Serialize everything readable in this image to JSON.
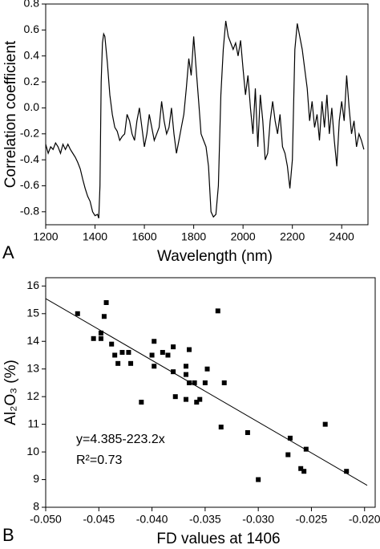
{
  "chart_data": [
    {
      "type": "line",
      "panel_label": "A",
      "xlabel": "Wavelength (nm)",
      "ylabel": "Correlation coefficient",
      "xlim": [
        1200,
        2500
      ],
      "xticks": [
        1200,
        1400,
        1600,
        1800,
        2000,
        2200,
        2400
      ],
      "ylim": [
        -0.9,
        0.8
      ],
      "yticks": [
        -0.8,
        -0.6,
        -0.4,
        -0.2,
        {
          "value": 0,
          "label": "0.0"
        },
        0.2,
        0.4,
        0.6,
        0.8
      ],
      "color": "#000000",
      "x": [
        1200,
        1210,
        1220,
        1230,
        1240,
        1250,
        1260,
        1270,
        1280,
        1290,
        1300,
        1310,
        1320,
        1330,
        1340,
        1350,
        1360,
        1370,
        1380,
        1390,
        1400,
        1410,
        1415,
        1420,
        1425,
        1430,
        1435,
        1440,
        1450,
        1460,
        1470,
        1480,
        1490,
        1500,
        1510,
        1520,
        1530,
        1540,
        1550,
        1560,
        1570,
        1580,
        1590,
        1600,
        1610,
        1620,
        1630,
        1640,
        1650,
        1660,
        1670,
        1680,
        1690,
        1700,
        1710,
        1720,
        1730,
        1740,
        1750,
        1760,
        1770,
        1780,
        1790,
        1800,
        1810,
        1820,
        1830,
        1840,
        1850,
        1860,
        1870,
        1880,
        1890,
        1900,
        1910,
        1920,
        1930,
        1940,
        1950,
        1960,
        1970,
        1980,
        1990,
        2000,
        2010,
        2020,
        2030,
        2040,
        2050,
        2060,
        2070,
        2080,
        2090,
        2100,
        2110,
        2120,
        2130,
        2140,
        2150,
        2160,
        2170,
        2180,
        2190,
        2200,
        2210,
        2220,
        2230,
        2240,
        2250,
        2260,
        2270,
        2280,
        2290,
        2300,
        2310,
        2320,
        2330,
        2340,
        2350,
        2360,
        2370,
        2380,
        2390,
        2400,
        2410,
        2420,
        2430,
        2440,
        2450,
        2460,
        2470,
        2480,
        2490
      ],
      "values": [
        -0.28,
        -0.35,
        -0.3,
        -0.32,
        -0.27,
        -0.3,
        -0.35,
        -0.28,
        -0.32,
        -0.28,
        -0.32,
        -0.35,
        -0.38,
        -0.42,
        -0.47,
        -0.55,
        -0.62,
        -0.68,
        -0.72,
        -0.8,
        -0.83,
        -0.82,
        -0.85,
        -0.6,
        0.2,
        0.5,
        0.57,
        0.55,
        0.35,
        0.1,
        -0.05,
        -0.15,
        -0.18,
        -0.25,
        -0.22,
        -0.2,
        -0.05,
        -0.1,
        -0.2,
        -0.25,
        -0.1,
        0.0,
        -0.15,
        -0.3,
        -0.2,
        -0.05,
        -0.15,
        -0.25,
        -0.2,
        -0.15,
        0.05,
        -0.1,
        -0.2,
        -0.15,
        0.0,
        -0.2,
        -0.35,
        -0.25,
        -0.15,
        -0.05,
        0.15,
        0.38,
        0.25,
        0.55,
        0.3,
        0.05,
        -0.2,
        -0.25,
        -0.3,
        -0.45,
        -0.8,
        -0.84,
        -0.82,
        -0.6,
        0.1,
        0.45,
        0.67,
        0.55,
        0.5,
        0.45,
        0.5,
        0.4,
        0.52,
        0.3,
        0.1,
        0.25,
        0.0,
        -0.2,
        0.15,
        -0.3,
        0.1,
        -0.1,
        -0.4,
        -0.35,
        -0.1,
        0.05,
        -0.1,
        -0.2,
        -0.05,
        -0.3,
        -0.35,
        -0.45,
        -0.62,
        -0.4,
        0.45,
        0.65,
        0.55,
        0.45,
        0.3,
        0.15,
        -0.1,
        0.05,
        -0.15,
        -0.05,
        -0.25,
        0.05,
        -0.15,
        0.1,
        -0.2,
        0.0,
        -0.25,
        -0.45,
        -0.1,
        0.05,
        -0.1,
        0.25,
        0.0,
        -0.2,
        -0.1,
        -0.3,
        -0.2,
        -0.25,
        -0.32
      ]
    },
    {
      "type": "scatter",
      "panel_label": "B",
      "xlabel": "FD values at 1406",
      "ylabel": "Al₂O₃ (%)",
      "xlim": [
        -0.05,
        -0.019
      ],
      "xticks": [
        {
          "value": -0.05,
          "label": "-0.050"
        },
        {
          "value": -0.045,
          "label": "-0.045"
        },
        {
          "value": -0.04,
          "label": "-0.040"
        },
        {
          "value": -0.035,
          "label": "-0.035"
        },
        {
          "value": -0.03,
          "label": "-0.030"
        },
        {
          "value": -0.025,
          "label": "-0.025"
        },
        {
          "value": -0.02,
          "label": "-0.020"
        }
      ],
      "ylim": [
        8,
        16.3
      ],
      "yticks": [
        8,
        9,
        10,
        11,
        12,
        13,
        14,
        15,
        16
      ],
      "color": "#000000",
      "x": [
        -0.047,
        -0.0443,
        -0.0445,
        -0.0448,
        -0.0455,
        -0.0448,
        -0.0438,
        -0.0435,
        -0.0432,
        -0.0428,
        -0.0422,
        -0.042,
        -0.041,
        -0.04,
        -0.0398,
        -0.0398,
        -0.039,
        -0.0385,
        -0.038,
        -0.038,
        -0.0378,
        -0.0368,
        -0.0368,
        -0.0365,
        -0.0365,
        -0.0368,
        -0.036,
        -0.0358,
        -0.0355,
        -0.035,
        -0.0348,
        -0.0338,
        -0.0335,
        -0.0332,
        -0.031,
        -0.03,
        -0.0272,
        -0.027,
        -0.026,
        -0.0257,
        -0.0255,
        -0.0237,
        -0.0217
      ],
      "values": [
        15.0,
        15.4,
        14.9,
        14.3,
        14.1,
        14.1,
        13.9,
        13.5,
        13.2,
        13.6,
        13.6,
        13.2,
        11.8,
        13.5,
        14.0,
        13.1,
        13.6,
        13.5,
        13.8,
        12.9,
        12.0,
        13.1,
        12.8,
        13.7,
        12.5,
        11.9,
        12.5,
        11.8,
        11.9,
        12.5,
        13.0,
        15.1,
        10.9,
        12.5,
        10.7,
        9.0,
        9.9,
        10.5,
        9.4,
        9.3,
        10.1,
        11.0,
        9.3
      ],
      "trendline": {
        "intercept": 4.385,
        "slope": -223.2
      },
      "annotations": [
        "y=4.385-223.2x",
        "R²=0.73"
      ]
    }
  ]
}
